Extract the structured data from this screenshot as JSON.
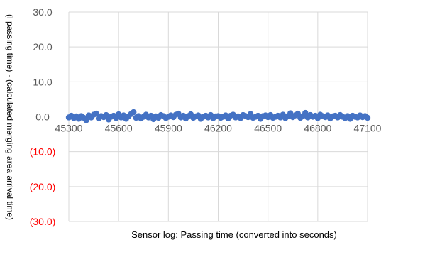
{
  "chart_data": {
    "type": "scatter",
    "title": "",
    "xlabel": "Sensor log: Passing time (converted into seconds)",
    "ylabel": "(l passing time) - (calculated merging area arrival time)",
    "xlim": [
      45300,
      47100
    ],
    "ylim": [
      -30,
      30
    ],
    "grid": true,
    "x_ticks": [
      "45300",
      "45600",
      "45900",
      "46200",
      "46500",
      "46800",
      "47100"
    ],
    "y_ticks": [
      {
        "value": 30,
        "label": "30.0",
        "color": "#595959"
      },
      {
        "value": 20,
        "label": "20.0",
        "color": "#595959"
      },
      {
        "value": 10,
        "label": "10.0",
        "color": "#595959"
      },
      {
        "value": 0,
        "label": "0.0",
        "color": "#595959"
      },
      {
        "value": -10,
        "label": "(10.0)",
        "color": "#ff0000"
      },
      {
        "value": -20,
        "label": "(20.0)",
        "color": "#ff0000"
      },
      {
        "value": -30,
        "label": "(30.0)",
        "color": "#ff0000"
      }
    ],
    "marker_color": "#4472c4",
    "grid_color": "#d9d9d9",
    "x": [
      45300,
      45315,
      45330,
      45345,
      45360,
      45375,
      45390,
      45405,
      45420,
      45435,
      45450,
      45465,
      45480,
      45495,
      45510,
      45525,
      45540,
      45555,
      45570,
      45585,
      45600,
      45615,
      45630,
      45645,
      45660,
      45675,
      45690,
      45705,
      45720,
      45735,
      45750,
      45765,
      45780,
      45795,
      45810,
      45825,
      45840,
      45855,
      45870,
      45885,
      45900,
      45915,
      45930,
      45945,
      45960,
      45975,
      45990,
      46005,
      46020,
      46035,
      46050,
      46065,
      46080,
      46095,
      46110,
      46125,
      46140,
      46155,
      46170,
      46185,
      46200,
      46215,
      46230,
      46245,
      46260,
      46275,
      46290,
      46305,
      46320,
      46335,
      46350,
      46365,
      46380,
      46395,
      46410,
      46425,
      46440,
      46455,
      46470,
      46485,
      46500,
      46515,
      46530,
      46545,
      46560,
      46575,
      46590,
      46605,
      46620,
      46635,
      46650,
      46665,
      46680,
      46695,
      46710,
      46725,
      46740,
      46755,
      46770,
      46785,
      46800,
      46815,
      46830,
      46845,
      46860,
      46875,
      46890,
      46905,
      46920,
      46935,
      46950,
      46965,
      46980,
      46995,
      47010,
      47025,
      47040,
      47055,
      47070,
      47085,
      47100
    ],
    "y": [
      -0.2,
      0.3,
      -0.4,
      0.1,
      -0.6,
      0.2,
      -0.3,
      -1.0,
      0.4,
      -0.2,
      0.6,
      0.9,
      -0.5,
      0.2,
      -0.1,
      0.5,
      -0.8,
      0.0,
      0.3,
      -0.4,
      0.7,
      -0.2,
      0.4,
      -0.6,
      0.1,
      0.8,
      1.3,
      -0.3,
      0.2,
      -0.5,
      0.0,
      0.6,
      -0.2,
      0.3,
      -0.7,
      0.1,
      -0.3,
      0.5,
      0.2,
      -0.4,
      0.0,
      0.4,
      -0.1,
      0.6,
      0.9,
      -0.2,
      0.3,
      -0.5,
      0.2,
      0.7,
      -0.3,
      0.1,
      0.4,
      -0.6,
      0.0,
      0.3,
      -0.2,
      0.5,
      -0.4,
      0.1,
      0.2,
      -0.3,
      0.0,
      0.4,
      -0.5,
      0.3,
      0.6,
      -0.2,
      0.1,
      -0.4,
      0.5,
      0.2,
      -0.1,
      0.8,
      -0.3,
      0.0,
      0.3,
      -0.6,
      0.2,
      0.4,
      -0.1,
      0.5,
      -0.3,
      0.0,
      0.3,
      -0.2,
      0.6,
      -0.4,
      0.2,
      1.0,
      -0.1,
      0.4,
      0.9,
      -0.3,
      0.2,
      1.1,
      -0.2,
      0.5,
      0.0,
      0.3,
      -0.4,
      0.6,
      0.2,
      -0.1,
      0.4,
      -0.5,
      0.1,
      0.3,
      -0.2,
      0.5,
      0.0,
      -0.4,
      0.2,
      -0.6,
      0.3,
      0.0,
      -0.2,
      0.4,
      -0.1,
      0.2,
      -0.3
    ]
  }
}
